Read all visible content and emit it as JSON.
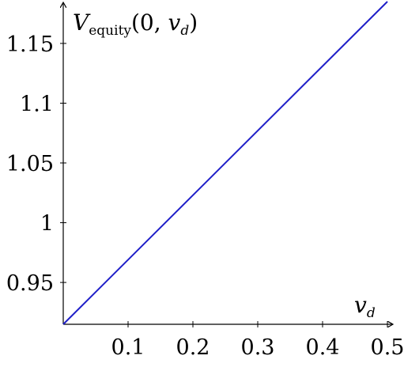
{
  "chart_data": {
    "type": "line",
    "title": "",
    "xlabel": {
      "main": "v",
      "sub": "d"
    },
    "ylabel": {
      "main": "V",
      "sub": "equity",
      "args": "(0, ",
      "arg_main": "v",
      "arg_sub": "d",
      "close": ")"
    },
    "xlim": [
      0,
      0.5
    ],
    "ylim": [
      0.915,
      1.185
    ],
    "x_ticks": [
      0.1,
      0.2,
      0.3,
      0.4,
      0.5
    ],
    "x_tick_labels": [
      "0.1",
      "0.2",
      "0.3",
      "0.4",
      "0.5"
    ],
    "y_ticks": [
      0.95,
      1.0,
      1.05,
      1.1,
      1.15
    ],
    "y_tick_labels": [
      "0.95",
      "1",
      "1.05",
      "1.1",
      "1.15"
    ],
    "grid": false,
    "series": [
      {
        "color": "#1f1fc8",
        "x": [
          0,
          0.5
        ],
        "y": [
          0.915,
          1.185
        ]
      }
    ]
  }
}
